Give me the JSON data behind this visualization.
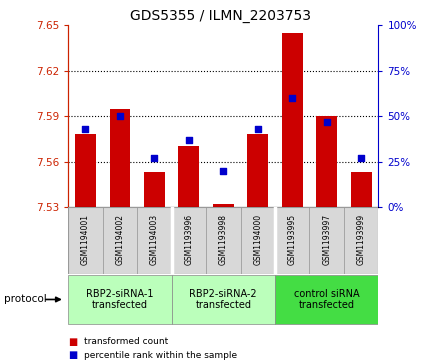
{
  "title": "GDS5355 / ILMN_2203753",
  "samples": [
    "GSM1194001",
    "GSM1194002",
    "GSM1194003",
    "GSM1193996",
    "GSM1193998",
    "GSM1194000",
    "GSM1193995",
    "GSM1193997",
    "GSM1193999"
  ],
  "transformed_count": [
    7.578,
    7.595,
    7.553,
    7.57,
    7.532,
    7.578,
    7.645,
    7.59,
    7.553
  ],
  "percentile_rank": [
    43,
    50,
    27,
    37,
    20,
    43,
    60,
    47,
    27
  ],
  "ylim_left": [
    7.53,
    7.65
  ],
  "ylim_right": [
    0,
    100
  ],
  "yticks_left": [
    7.53,
    7.56,
    7.59,
    7.62,
    7.65
  ],
  "yticks_right": [
    0,
    25,
    50,
    75,
    100
  ],
  "bar_color": "#cc0000",
  "dot_color": "#0000cc",
  "bar_width": 0.6,
  "groups": [
    {
      "label": "RBP2-siRNA-1\ntransfected",
      "indices": [
        0,
        1,
        2
      ],
      "color": "#bbffbb"
    },
    {
      "label": "RBP2-siRNA-2\ntransfected",
      "indices": [
        3,
        4,
        5
      ],
      "color": "#bbffbb"
    },
    {
      "label": "control siRNA\ntransfected",
      "indices": [
        6,
        7,
        8
      ],
      "color": "#44dd44"
    }
  ],
  "protocol_label": "protocol",
  "legend_items": [
    {
      "color": "#cc0000",
      "label": "transformed count"
    },
    {
      "color": "#0000cc",
      "label": "percentile rank within the sample"
    }
  ],
  "tick_color_left": "#cc2200",
  "tick_color_right": "#0000cc",
  "base_value": 7.53,
  "dotted_lines": [
    7.56,
    7.59,
    7.62
  ]
}
